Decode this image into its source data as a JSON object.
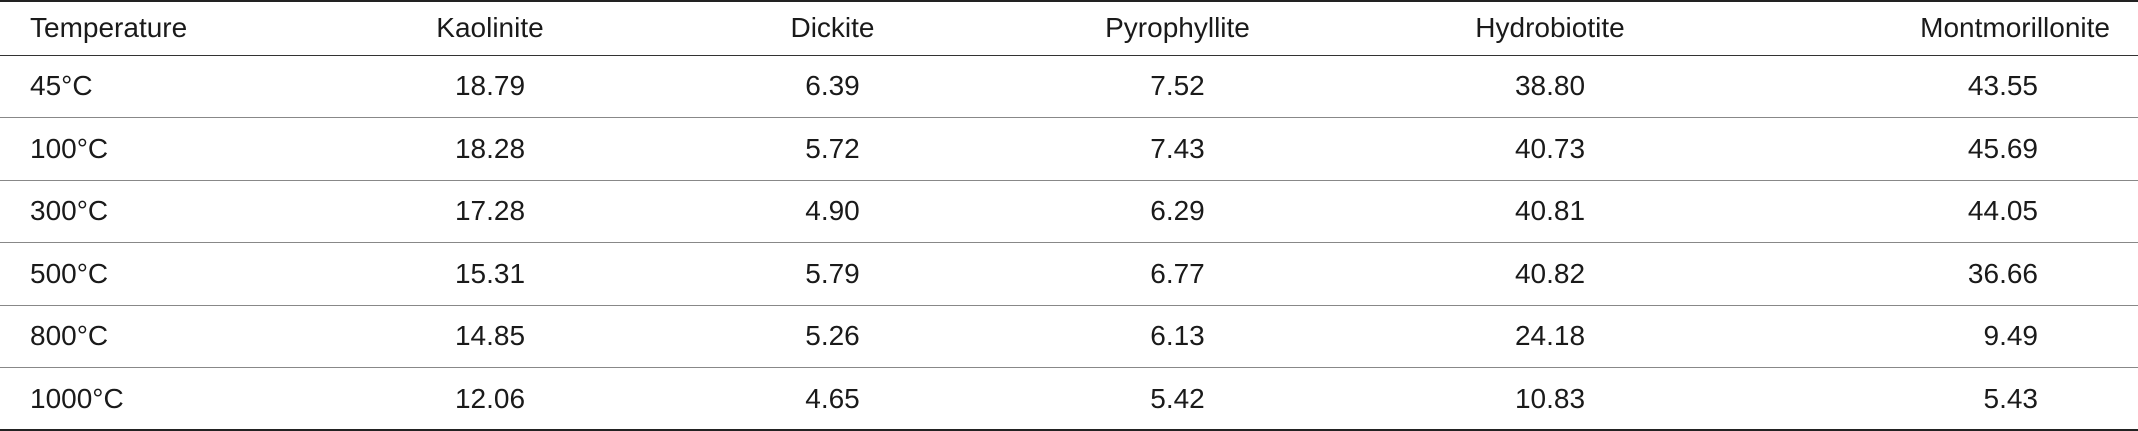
{
  "table": {
    "headers": [
      "Temperature",
      "Kaolinite",
      "Dickite",
      "Pyrophyllite",
      "Hydrobiotite",
      "Montmorillonite"
    ],
    "rows": [
      [
        "45°C",
        "18.79",
        "6.39",
        "7.52",
        "38.80",
        "43.55"
      ],
      [
        "100°C",
        "18.28",
        "5.72",
        "7.43",
        "40.73",
        "45.69"
      ],
      [
        "300°C",
        "17.28",
        "4.90",
        "6.29",
        "40.81",
        "44.05"
      ],
      [
        "500°C",
        "15.31",
        "5.79",
        "6.77",
        "40.82",
        "36.66"
      ],
      [
        "800°C",
        "14.85",
        "5.26",
        "6.13",
        "24.18",
        "9.49"
      ],
      [
        "1000°C",
        "12.06",
        "4.65",
        "5.42",
        "10.83",
        "5.43"
      ]
    ]
  }
}
